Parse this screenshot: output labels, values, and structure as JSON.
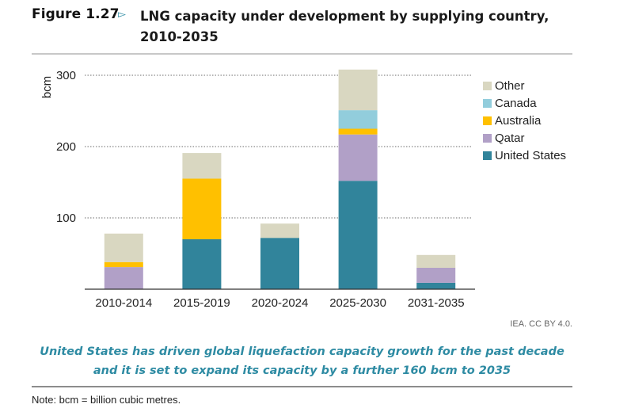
{
  "figure": {
    "label": "Figure 1.27",
    "arrow_icon": "triangle-right-outline-icon",
    "title_line1": "LNG capacity under development by supplying country,",
    "title_line2": "2010-2035"
  },
  "source": "IEA. CC BY 4.0.",
  "takeaway_line1": "United States has driven global liquefaction capacity growth for the past decade",
  "takeaway_line2": "and it is set to expand its capacity by a further 160 bcm to 2035",
  "note": "Note: bcm = billion cubic metres.",
  "chart_data": {
    "type": "bar",
    "stacked": true,
    "title": "LNG capacity under development by supplying country, 2010-2035",
    "xlabel": "",
    "ylabel": "bcm",
    "ylim": [
      0,
      300
    ],
    "yticks": [
      100,
      200,
      300
    ],
    "grid": true,
    "legend_position": "right",
    "categories": [
      "2010-2014",
      "2015-2019",
      "2020-2024",
      "2025-2030",
      "2031-2035"
    ],
    "series": [
      {
        "name": "United States",
        "color": "#31849b",
        "values": [
          0,
          70,
          72,
          152,
          9
        ]
      },
      {
        "name": "Qatar",
        "color": "#b1a0c7",
        "values": [
          31,
          0,
          0,
          65,
          21
        ]
      },
      {
        "name": "Australia",
        "color": "#ffc000",
        "values": [
          7,
          85,
          0,
          8,
          0
        ]
      },
      {
        "name": "Canada",
        "color": "#92cddc",
        "values": [
          0,
          0,
          0,
          26,
          0
        ]
      },
      {
        "name": "Other",
        "color": "#d9d7c1",
        "values": [
          40,
          36,
          20,
          57,
          18
        ]
      }
    ],
    "legend_order": [
      "Other",
      "Canada",
      "Australia",
      "Qatar",
      "United States"
    ]
  }
}
